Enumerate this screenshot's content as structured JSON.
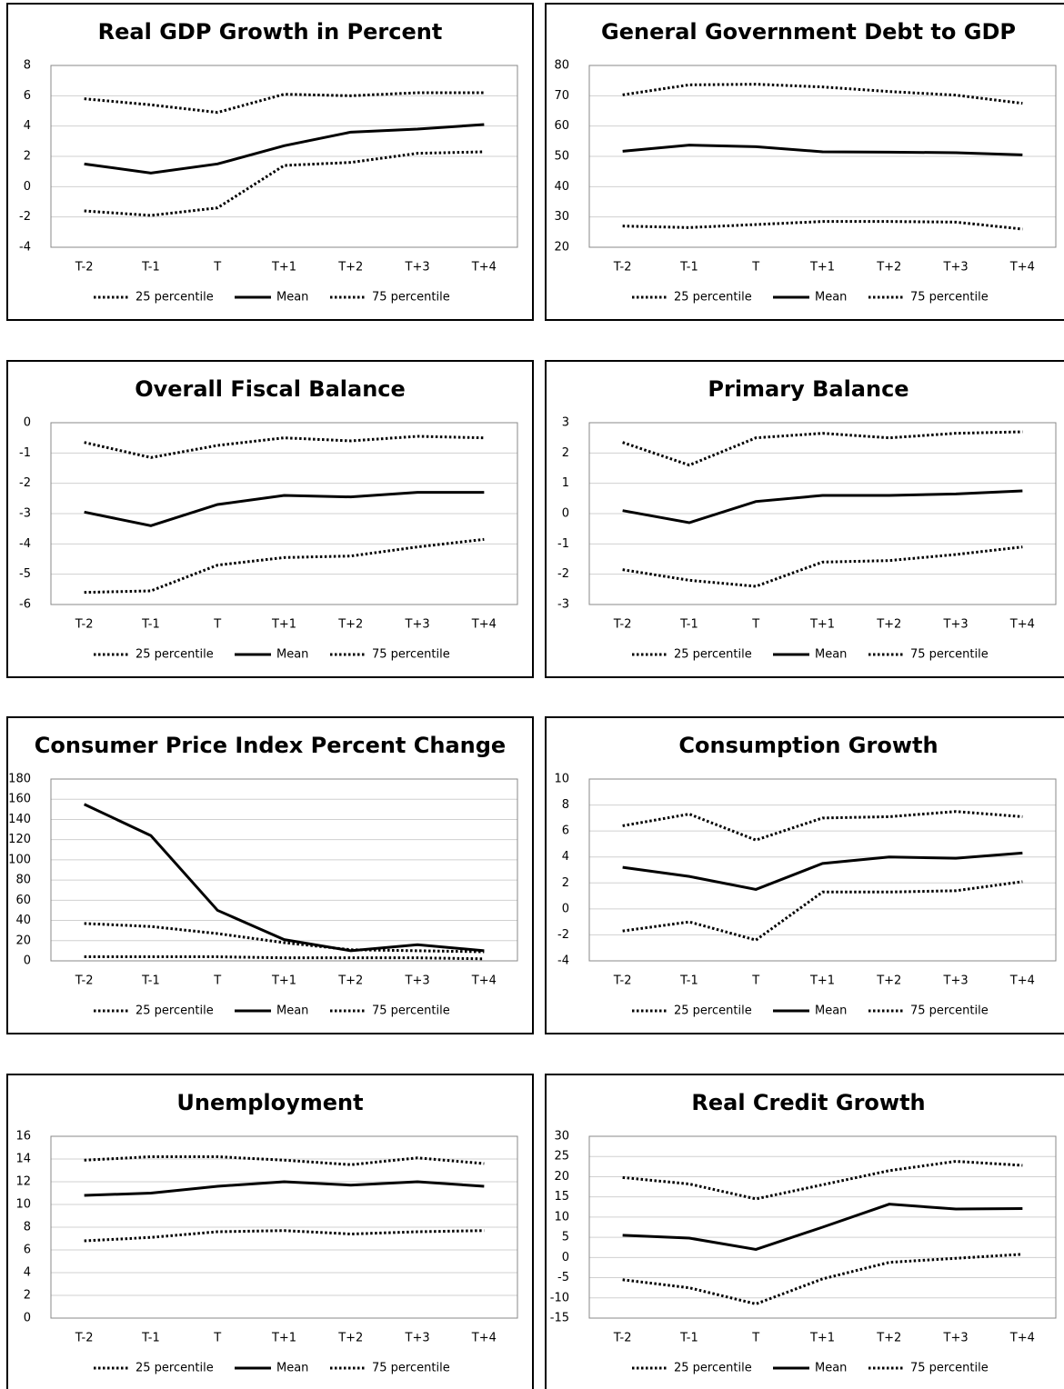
{
  "chart_data": [
    {
      "type": "line",
      "title": "Real GDP Growth in Percent",
      "categories": [
        "T-2",
        "T-1",
        "T",
        "T+1",
        "T+2",
        "T+3",
        "T+4"
      ],
      "series": [
        {
          "name": "25 percentile",
          "color": "#000000",
          "dash": "dotted",
          "values": [
            -1.6,
            -1.9,
            -1.4,
            1.4,
            1.6,
            2.2,
            2.3
          ]
        },
        {
          "name": "Mean",
          "color": "#000000",
          "dash": "solid",
          "values": [
            1.5,
            0.9,
            1.5,
            2.7,
            3.6,
            3.8,
            4.1
          ]
        },
        {
          "name": "75 percentile",
          "color": "#000000",
          "dash": "dotted",
          "values": [
            5.8,
            5.4,
            4.9,
            6.1,
            6.0,
            6.2,
            6.2
          ]
        }
      ],
      "ylim": [
        -4,
        8
      ],
      "yticks": [
        -4,
        -2,
        0,
        2,
        4,
        6,
        8
      ],
      "grid": true
    },
    {
      "type": "line",
      "title": "General Government Debt to GDP",
      "categories": [
        "T-2",
        "T-1",
        "T",
        "T+1",
        "T+2",
        "T+3",
        "T+4"
      ],
      "series": [
        {
          "name": "25 percentile",
          "color": "#000000",
          "dash": "dotted",
          "values": [
            27,
            26.5,
            27.5,
            28.5,
            28.5,
            28.3,
            26
          ]
        },
        {
          "name": "Mean",
          "color": "#000000",
          "dash": "solid",
          "values": [
            51.7,
            53.7,
            53.2,
            51.5,
            51.4,
            51.2,
            50.5
          ]
        },
        {
          "name": "75 percentile",
          "color": "#000000",
          "dash": "dotted",
          "values": [
            70.3,
            73.6,
            73.8,
            72.9,
            71.4,
            70.2,
            67.5
          ]
        }
      ],
      "ylim": [
        20,
        80
      ],
      "yticks": [
        20,
        30,
        40,
        50,
        60,
        70,
        80
      ],
      "grid": true
    },
    {
      "type": "line",
      "title": "Overall Fiscal Balance",
      "categories": [
        "T-2",
        "T-1",
        "T",
        "T+1",
        "T+2",
        "T+3",
        "T+4"
      ],
      "series": [
        {
          "name": "25 percentile",
          "color": "#000000",
          "dash": "dotted",
          "values": [
            -5.6,
            -5.55,
            -4.7,
            -4.45,
            -4.4,
            -4.1,
            -3.85
          ]
        },
        {
          "name": "Mean",
          "color": "#000000",
          "dash": "solid",
          "values": [
            -2.95,
            -3.4,
            -2.7,
            -2.4,
            -2.45,
            -2.3,
            -2.3
          ]
        },
        {
          "name": "75 percentile",
          "color": "#000000",
          "dash": "dotted",
          "values": [
            -0.65,
            -1.15,
            -0.75,
            -0.5,
            -0.6,
            -0.45,
            -0.5
          ]
        }
      ],
      "ylim": [
        -6,
        0
      ],
      "yticks": [
        -6,
        -5,
        -4,
        -3,
        -2,
        -1,
        0
      ],
      "grid": true
    },
    {
      "type": "line",
      "title": "Primary Balance",
      "categories": [
        "T-2",
        "T-1",
        "T",
        "T+1",
        "T+2",
        "T+3",
        "T+4"
      ],
      "series": [
        {
          "name": "25 percentile",
          "color": "#000000",
          "dash": "dotted",
          "values": [
            -1.85,
            -2.2,
            -2.4,
            -1.6,
            -1.55,
            -1.35,
            -1.1
          ]
        },
        {
          "name": "Mean",
          "color": "#000000",
          "dash": "solid",
          "values": [
            0.1,
            -0.3,
            0.4,
            0.6,
            0.6,
            0.65,
            0.75
          ]
        },
        {
          "name": "75 percentile",
          "color": "#000000",
          "dash": "dotted",
          "values": [
            2.35,
            1.6,
            2.5,
            2.65,
            2.5,
            2.65,
            2.7
          ]
        }
      ],
      "ylim": [
        -3,
        3
      ],
      "yticks": [
        -3,
        -2,
        -1,
        0,
        1,
        2,
        3
      ],
      "grid": true
    },
    {
      "type": "line",
      "title": "Consumer Price Index Percent Change",
      "categories": [
        "T-2",
        "T-1",
        "T",
        "T+1",
        "T+2",
        "T+3",
        "T+4"
      ],
      "series": [
        {
          "name": "25 percentile",
          "color": "#000000",
          "dash": "dotted",
          "values": [
            4,
            4,
            4,
            3,
            3,
            3,
            2
          ]
        },
        {
          "name": "Mean",
          "color": "#000000",
          "dash": "solid",
          "values": [
            155,
            124,
            50,
            21,
            10,
            16,
            10
          ]
        },
        {
          "name": "75 percentile",
          "color": "#000000",
          "dash": "dotted",
          "values": [
            37,
            34,
            27,
            18,
            11,
            10,
            9
          ]
        }
      ],
      "ylim": [
        0,
        180
      ],
      "yticks": [
        0,
        20,
        40,
        60,
        80,
        100,
        120,
        140,
        160,
        180
      ],
      "grid": true
    },
    {
      "type": "line",
      "title": "Consumption Growth",
      "categories": [
        "T-2",
        "T-1",
        "T",
        "T+1",
        "T+2",
        "T+3",
        "T+4"
      ],
      "series": [
        {
          "name": "25 percentile",
          "color": "#000000",
          "dash": "dotted",
          "values": [
            -1.7,
            -1.0,
            -2.4,
            1.3,
            1.3,
            1.4,
            2.1
          ]
        },
        {
          "name": "Mean",
          "color": "#000000",
          "dash": "solid",
          "values": [
            3.2,
            2.5,
            1.5,
            3.5,
            4.0,
            3.9,
            4.3
          ]
        },
        {
          "name": "75 percentile",
          "color": "#000000",
          "dash": "dotted",
          "values": [
            6.4,
            7.3,
            5.3,
            7.0,
            7.1,
            7.5,
            7.1
          ]
        }
      ],
      "ylim": [
        -4,
        10
      ],
      "yticks": [
        -4,
        -2,
        0,
        2,
        4,
        6,
        8,
        10
      ],
      "grid": true
    },
    {
      "type": "line",
      "title": "Unemployment",
      "categories": [
        "T-2",
        "T-1",
        "T",
        "T+1",
        "T+2",
        "T+3",
        "T+4"
      ],
      "series": [
        {
          "name": "25 percentile",
          "color": "#000000",
          "dash": "dotted",
          "values": [
            6.8,
            7.1,
            7.6,
            7.7,
            7.4,
            7.6,
            7.7
          ]
        },
        {
          "name": "Mean",
          "color": "#000000",
          "dash": "solid",
          "values": [
            10.8,
            11.0,
            11.6,
            12.0,
            11.7,
            12.0,
            11.6
          ]
        },
        {
          "name": "75 percentile",
          "color": "#000000",
          "dash": "dotted",
          "values": [
            13.9,
            14.2,
            14.2,
            13.9,
            13.5,
            14.1,
            13.6
          ]
        }
      ],
      "ylim": [
        0,
        16
      ],
      "yticks": [
        0,
        2,
        4,
        6,
        8,
        10,
        12,
        14,
        16
      ],
      "grid": true
    },
    {
      "type": "line",
      "title": "Real Credit Growth",
      "categories": [
        "T-2",
        "T-1",
        "T",
        "T+1",
        "T+2",
        "T+3",
        "T+4"
      ],
      "series": [
        {
          "name": "25 percentile",
          "color": "#000000",
          "dash": "dotted",
          "values": [
            -5.5,
            -7.5,
            -11.5,
            -5.3,
            -1.2,
            -0.2,
            0.8
          ]
        },
        {
          "name": "Mean",
          "color": "#000000",
          "dash": "solid",
          "values": [
            5.5,
            4.8,
            2,
            7.5,
            13.2,
            12,
            12.1
          ]
        },
        {
          "name": "75 percentile",
          "color": "#000000",
          "dash": "dotted",
          "values": [
            19.8,
            18.2,
            14.5,
            18,
            21.5,
            23.8,
            22.8
          ]
        }
      ],
      "ylim": [
        -15,
        30
      ],
      "yticks": [
        -15,
        -10,
        -5,
        0,
        5,
        10,
        15,
        20,
        25,
        30
      ],
      "grid": true
    }
  ]
}
